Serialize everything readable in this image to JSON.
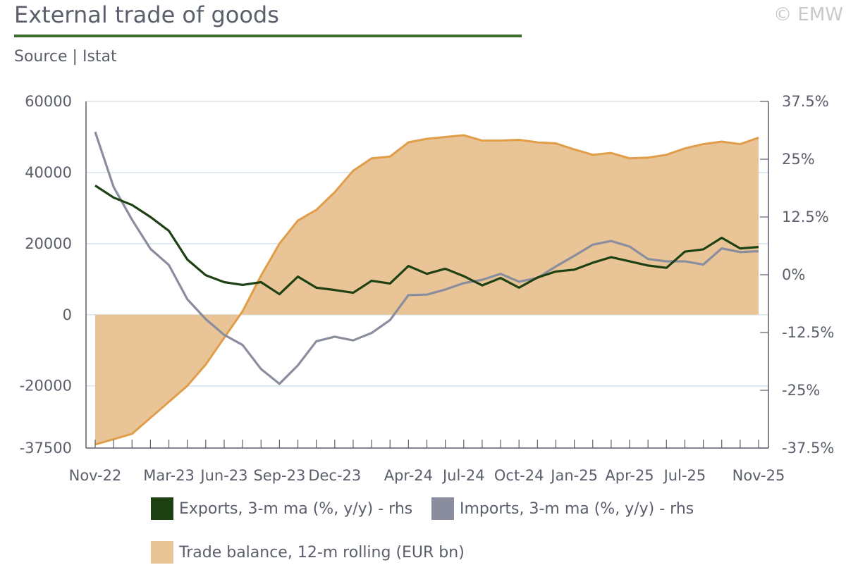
{
  "header": {
    "title": "External trade of goods",
    "copyright": "© EMW",
    "source": "Source | Istat"
  },
  "colors": {
    "title_rule": "#3e6b2e",
    "balance_fill": "#e8c496",
    "balance_line": "#e09d4a",
    "exports": "#1d4112",
    "imports": "#8a8d9d",
    "grid": "#d6e4ec",
    "axis": "#5a5f6b"
  },
  "chart_data": {
    "type": "area+line",
    "title": "External trade of goods",
    "x_ticks": [
      "Nov-22",
      "Mar-23",
      "Jun-23",
      "Sep-23",
      "Dec-23",
      "Apr-24",
      "Jul-24",
      "Oct-24",
      "Jan-25",
      "Apr-25",
      "Jul-25",
      "Nov-25"
    ],
    "months": [
      "Nov-22",
      "Dec-22",
      "Jan-23",
      "Feb-23",
      "Mar-23",
      "Apr-23",
      "May-23",
      "Jun-23",
      "Jul-23",
      "Aug-23",
      "Sep-23",
      "Oct-23",
      "Nov-23",
      "Dec-23",
      "Jan-24",
      "Feb-24",
      "Mar-24",
      "Apr-24",
      "May-24",
      "Jun-24",
      "Jul-24",
      "Aug-24",
      "Sep-24",
      "Oct-24",
      "Nov-24",
      "Dec-24",
      "Jan-25",
      "Feb-25",
      "Mar-25",
      "Apr-25",
      "May-25",
      "Jun-25",
      "Jul-25",
      "Aug-25",
      "Sep-25",
      "Oct-25",
      "Nov-25"
    ],
    "y_left": {
      "ticks": [
        "60000",
        "40000",
        "20000",
        "0",
        "-20000",
        "-37500"
      ],
      "range": [
        -37500,
        60000
      ]
    },
    "y_right": {
      "ticks": [
        "37.5%",
        "25%",
        "12.5%",
        "0%",
        "-12.5%",
        "-25%",
        "-37.5%"
      ],
      "range": [
        -37.5,
        37.5
      ]
    },
    "series": [
      {
        "name": "Trade balance, 12-m rolling (EUR bn)",
        "axis": "left",
        "kind": "area",
        "values": [
          -36500,
          -35000,
          -33500,
          -29000,
          -24500,
          -20000,
          -14000,
          -6500,
          1000,
          11000,
          20000,
          26500,
          29500,
          34500,
          40500,
          44000,
          44500,
          48500,
          49500,
          50000,
          50500,
          49000,
          49000,
          49200,
          48500,
          48200,
          46500,
          45000,
          45500,
          44000,
          44200,
          45000,
          46800,
          48000,
          48700,
          48000,
          49800
        ]
      },
      {
        "name": "Exports, 3-m ma (%, y/y) - rhs",
        "axis": "right",
        "kind": "line",
        "values": [
          19.3,
          16.7,
          15.1,
          12.5,
          9.5,
          3.3,
          -0.1,
          -1.6,
          -2.2,
          -1.6,
          -4.2,
          -0.4,
          -2.8,
          -3.3,
          -3.9,
          -1.3,
          -1.9,
          1.9,
          0.2,
          1.3,
          -0.3,
          -2.3,
          -0.7,
          -2.8,
          -0.6,
          0.7,
          1.1,
          2.6,
          3.8,
          2.9,
          2.0,
          1.5,
          5.0,
          5.5,
          8.0,
          5.7,
          6.0
        ]
      },
      {
        "name": "Imports, 3-m ma (%, y/y) - rhs",
        "axis": "right",
        "kind": "line",
        "values": [
          30.9,
          19.0,
          11.9,
          5.6,
          2.1,
          -5.3,
          -9.6,
          -13.0,
          -15.2,
          -20.4,
          -23.6,
          -19.6,
          -14.4,
          -13.4,
          -14.2,
          -12.6,
          -9.8,
          -4.4,
          -4.3,
          -3.2,
          -1.8,
          -1.1,
          0.2,
          -1.5,
          -0.7,
          1.8,
          4.1,
          6.5,
          7.3,
          6.1,
          3.4,
          2.9,
          2.9,
          2.2,
          5.7,
          4.9,
          5.1
        ]
      }
    ],
    "legend": [
      {
        "label": "Exports, 3-m ma (%, y/y) - rhs",
        "swatch": "#1d4112"
      },
      {
        "label": "Imports, 3-m ma (%, y/y) - rhs",
        "swatch": "#8a8d9d"
      },
      {
        "label": "Trade balance, 12-m rolling (EUR bn)",
        "swatch": "#e8c496"
      }
    ]
  }
}
